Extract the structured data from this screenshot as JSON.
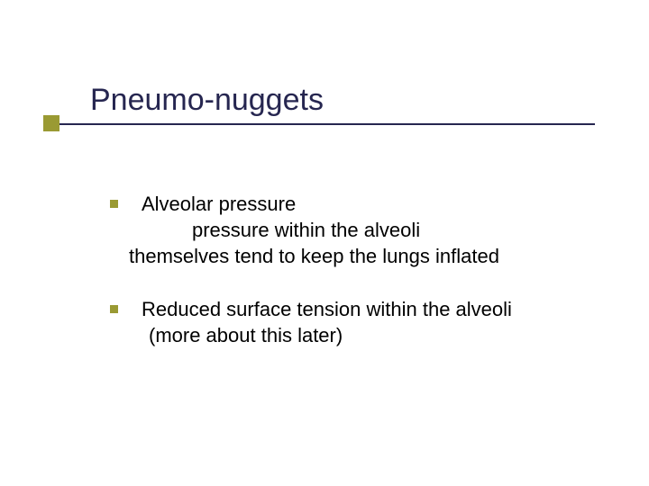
{
  "slide": {
    "title": "Pneumo-nuggets",
    "title_color": "#262650",
    "title_fontsize": 34,
    "rule_color": "#262650",
    "accent_square_color": "#9a9a33",
    "body_fontsize": 22,
    "body_color": "#000000",
    "background_color": "#ffffff",
    "para1": {
      "line1": "Alveolar pressure",
      "line2": "pressure within the alveoli",
      "line3": "themselves tend to keep the lungs inflated"
    },
    "para2": {
      "line1": "Reduced surface tension within the alveoli",
      "line2": "(more about this later)"
    }
  }
}
